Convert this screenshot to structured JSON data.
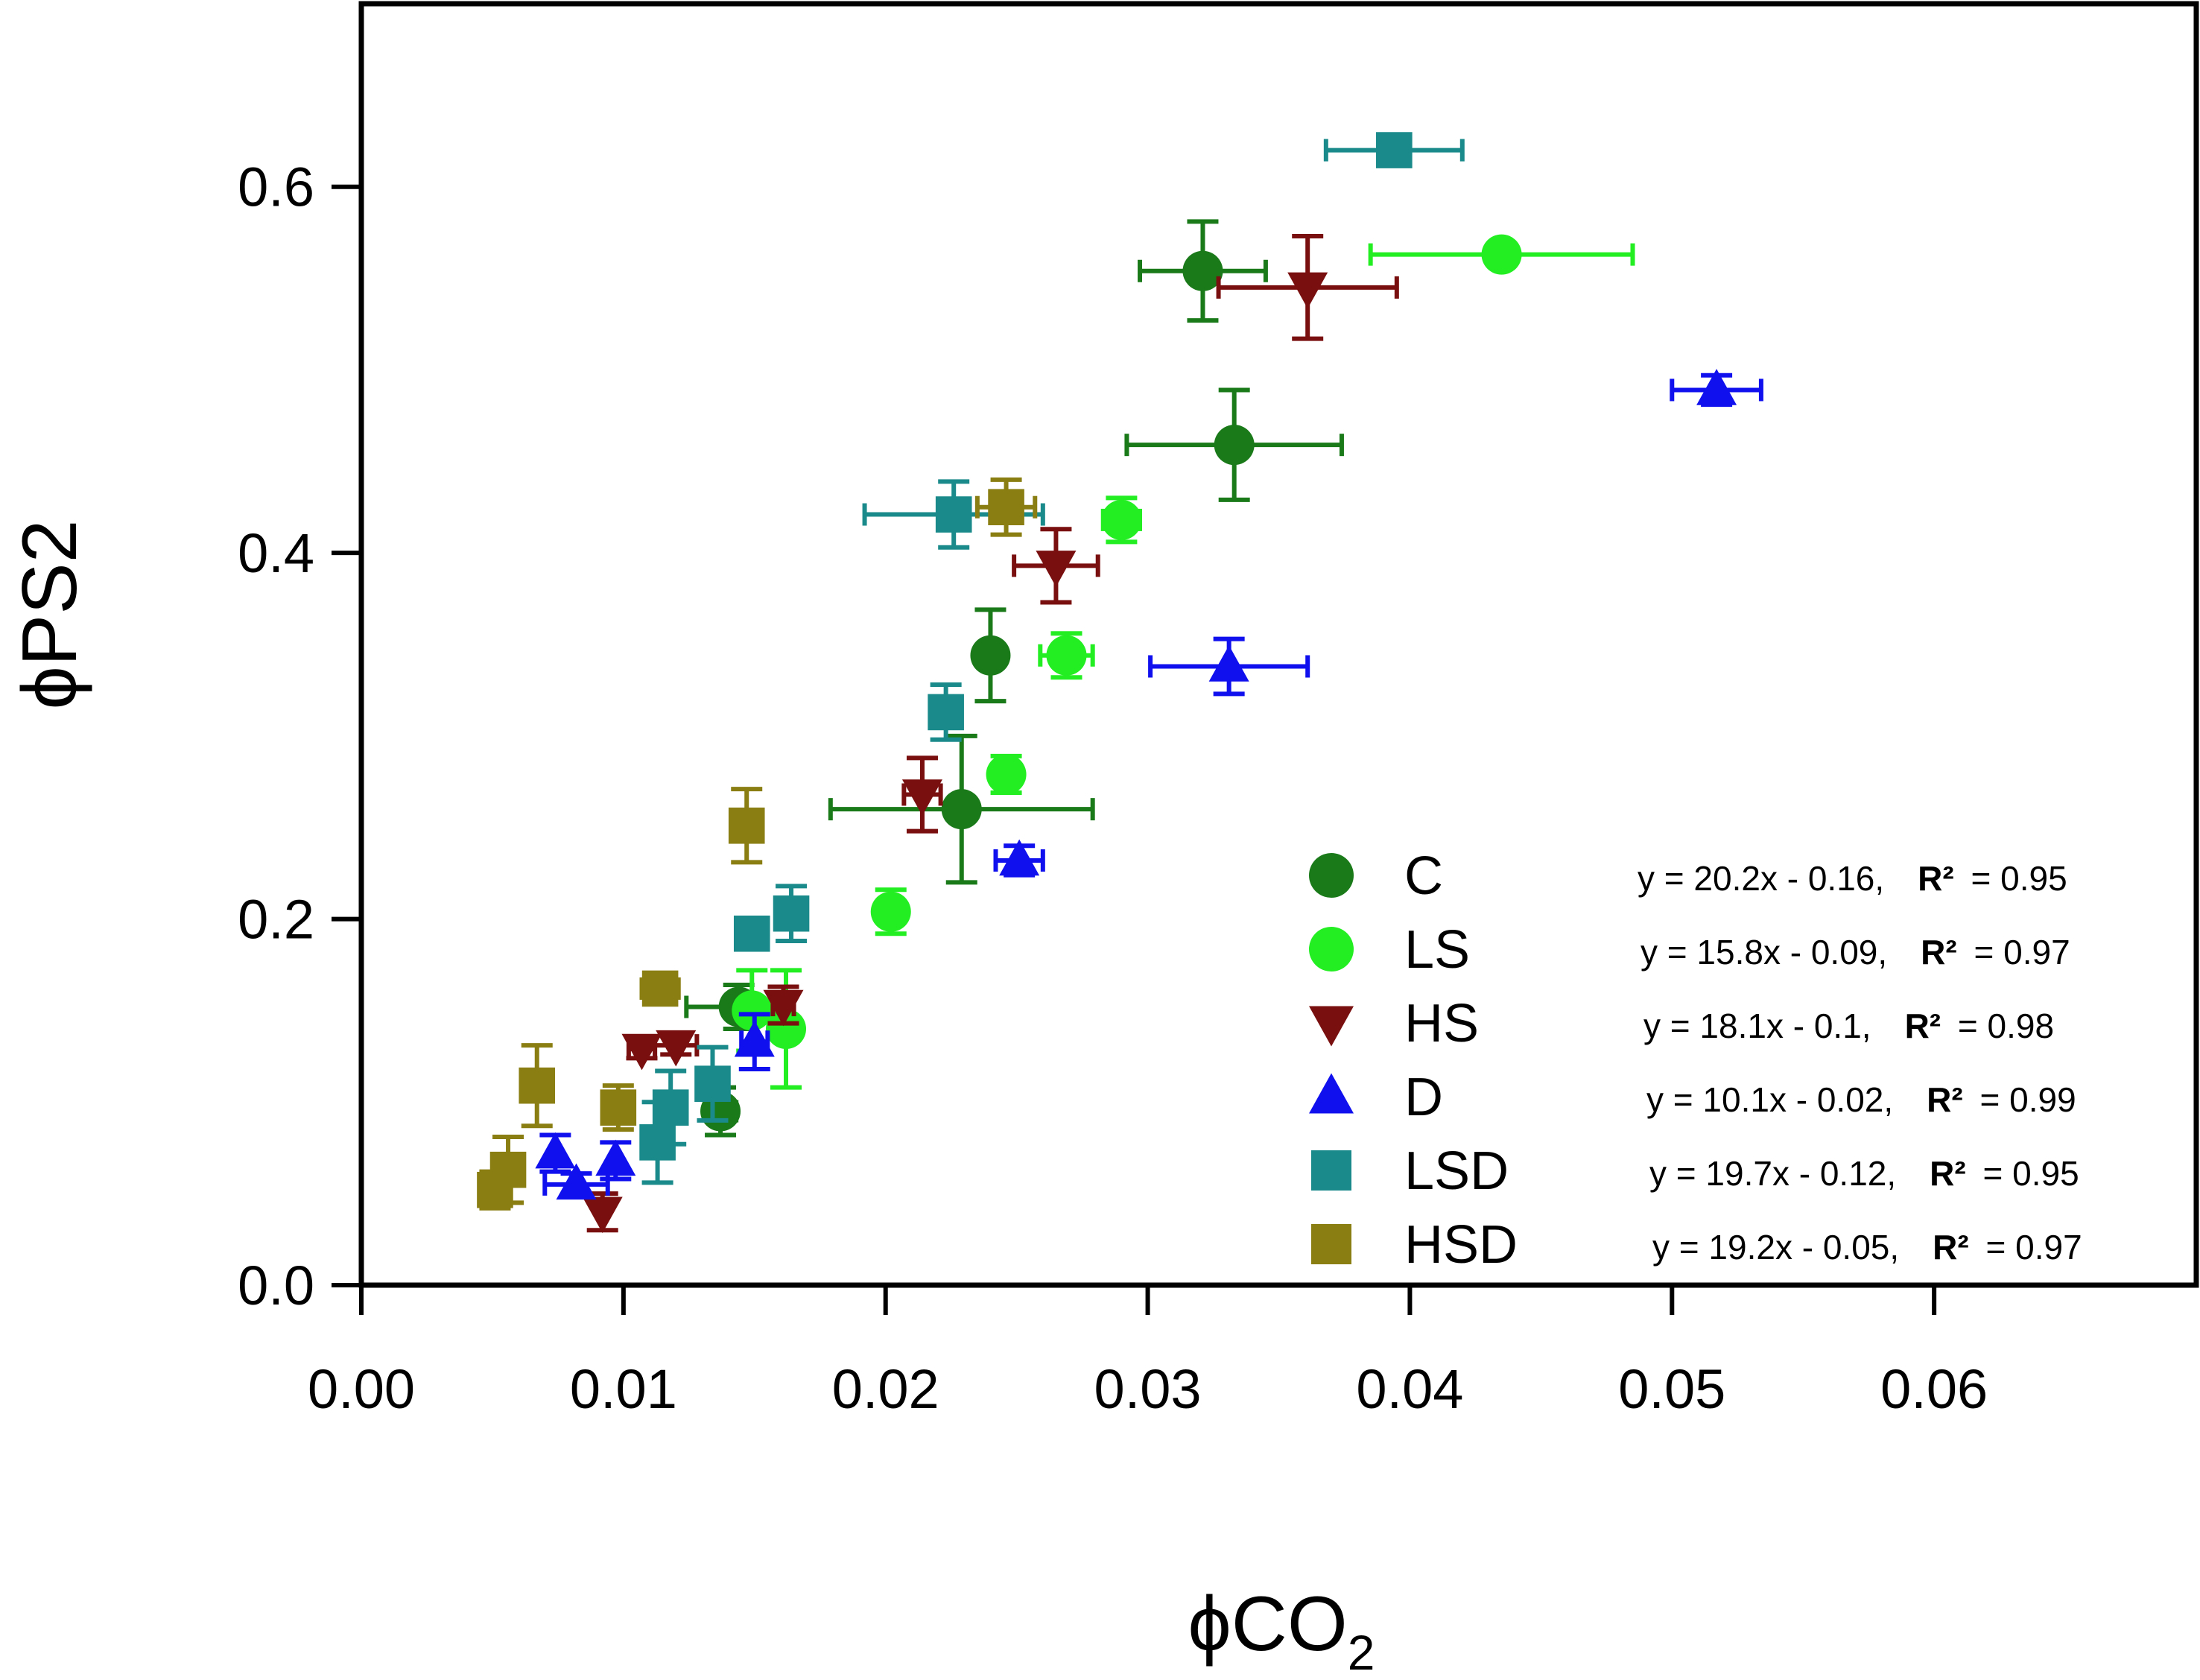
{
  "chart_data": {
    "type": "scatter",
    "title": "",
    "xlabel": "ϕCO",
    "xlabel_subscript": "2",
    "ylabel": "ϕPS2",
    "xlim": [
      0,
      0.07
    ],
    "ylim": [
      0,
      0.7
    ],
    "xticks": [
      0.0,
      0.01,
      0.02,
      0.03,
      0.04,
      0.05,
      0.06
    ],
    "xtick_labels": [
      "0.00",
      "0.01",
      "0.02",
      "0.03",
      "0.04",
      "0.05",
      "0.06"
    ],
    "yticks": [
      0.0,
      0.2,
      0.4,
      0.6
    ],
    "ytick_labels": [
      "0.0",
      "0.2",
      "0.4",
      "0.6"
    ],
    "grid": false,
    "legend_position": "bottom-right",
    "series": [
      {
        "name": "C",
        "marker": "circle",
        "color": "#1a7a1a",
        "equation": "y = 20.2x - 0.16,",
        "r2_label": "R²",
        "r2_value": "= 0.95",
        "points": [
          {
            "x": 0.0321,
            "y": 0.554,
            "xerr": 0.0024,
            "yerr": 0.027
          },
          {
            "x": 0.0333,
            "y": 0.459,
            "xerr": 0.0041,
            "yerr": 0.03
          },
          {
            "x": 0.024,
            "y": 0.344,
            "xerr": 0.0,
            "yerr": 0.025
          },
          {
            "x": 0.0229,
            "y": 0.26,
            "xerr": 0.005,
            "yerr": 0.04
          },
          {
            "x": 0.0144,
            "y": 0.152,
            "xerr": 0.002,
            "yerr": 0.012
          },
          {
            "x": 0.0137,
            "y": 0.095,
            "xerr": 0.0006,
            "yerr": 0.013
          }
        ]
      },
      {
        "name": "LS",
        "marker": "circle",
        "color": "#22ee22",
        "equation": "y = 15.8x - 0.09,",
        "r2_label": "R²",
        "r2_value": "= 0.97",
        "points": [
          {
            "x": 0.0435,
            "y": 0.563,
            "xerr": 0.005,
            "yerr": 0.0
          },
          {
            "x": 0.029,
            "y": 0.418,
            "xerr": 0.0007,
            "yerr": 0.012
          },
          {
            "x": 0.0269,
            "y": 0.344,
            "xerr": 0.001,
            "yerr": 0.012
          },
          {
            "x": 0.0246,
            "y": 0.279,
            "xerr": 0.0,
            "yerr": 0.01
          },
          {
            "x": 0.0202,
            "y": 0.204,
            "xerr": 0.0005,
            "yerr": 0.012
          },
          {
            "x": 0.0162,
            "y": 0.14,
            "xerr": 0.0004,
            "yerr": 0.032
          },
          {
            "x": 0.0149,
            "y": 0.15,
            "xerr": 0.0,
            "yerr": 0.022
          }
        ]
      },
      {
        "name": "HS",
        "marker": "triangle-down",
        "color": "#7a0f0f",
        "equation": "y = 18.1x - 0.1,",
        "r2_label": "R²",
        "r2_value": "= 0.98",
        "points": [
          {
            "x": 0.0361,
            "y": 0.545,
            "xerr": 0.0034,
            "yerr": 0.028
          },
          {
            "x": 0.0265,
            "y": 0.393,
            "xerr": 0.0016,
            "yerr": 0.02
          },
          {
            "x": 0.0214,
            "y": 0.268,
            "xerr": 0.0007,
            "yerr": 0.02
          },
          {
            "x": 0.0161,
            "y": 0.153,
            "xerr": 0.0004,
            "yerr": 0.01
          },
          {
            "x": 0.012,
            "y": 0.131,
            "xerr": 0.0008,
            "yerr": 0.005
          },
          {
            "x": 0.0107,
            "y": 0.129,
            "xerr": 0.0005,
            "yerr": 0.005
          },
          {
            "x": 0.0092,
            "y": 0.04,
            "xerr": 0.0,
            "yerr": 0.01
          }
        ]
      },
      {
        "name": "D",
        "marker": "triangle-up",
        "color": "#1010ee",
        "equation": "y = 10.1x - 0.02,",
        "r2_label": "R²",
        "r2_value": "= 0.99",
        "points": [
          {
            "x": 0.0517,
            "y": 0.489,
            "xerr": 0.0017,
            "yerr": 0.008
          },
          {
            "x": 0.0331,
            "y": 0.338,
            "xerr": 0.003,
            "yerr": 0.015
          },
          {
            "x": 0.0251,
            "y": 0.232,
            "xerr": 0.0009,
            "yerr": 0.008
          },
          {
            "x": 0.015,
            "y": 0.133,
            "xerr": 0.0005,
            "yerr": 0.015
          },
          {
            "x": 0.0097,
            "y": 0.068,
            "xerr": 0.0,
            "yerr": 0.01
          },
          {
            "x": 0.0082,
            "y": 0.055,
            "xerr": 0.0012,
            "yerr": 0.006
          },
          {
            "x": 0.0074,
            "y": 0.072,
            "xerr": 0.0,
            "yerr": 0.01
          }
        ]
      },
      {
        "name": "LSD",
        "marker": "square",
        "color": "#1a8a8a",
        "equation": "y = 19.7x - 0.12,",
        "r2_label": "R²",
        "r2_value": "= 0.95",
        "points": [
          {
            "x": 0.0394,
            "y": 0.62,
            "xerr": 0.0026,
            "yerr": 0.0
          },
          {
            "x": 0.0226,
            "y": 0.421,
            "xerr": 0.0034,
            "yerr": 0.018
          },
          {
            "x": 0.0223,
            "y": 0.313,
            "xerr": 0.0004,
            "yerr": 0.015
          },
          {
            "x": 0.0164,
            "y": 0.203,
            "xerr": 0.0005,
            "yerr": 0.015
          },
          {
            "x": 0.0149,
            "y": 0.192,
            "xerr": 0.0005,
            "yerr": 0.005
          },
          {
            "x": 0.0134,
            "y": 0.11,
            "xerr": 0.0,
            "yerr": 0.02
          },
          {
            "x": 0.0118,
            "y": 0.097,
            "xerr": 0.0,
            "yerr": 0.02
          },
          {
            "x": 0.0113,
            "y": 0.078,
            "xerr": 0.0,
            "yerr": 0.022
          }
        ]
      },
      {
        "name": "HSD",
        "marker": "square",
        "color": "#8a7e12",
        "equation": "y = 19.2x - 0.05,",
        "r2_label": "R²",
        "r2_value": "= 0.97",
        "points": [
          {
            "x": 0.0246,
            "y": 0.425,
            "xerr": 0.0011,
            "yerr": 0.015
          },
          {
            "x": 0.0147,
            "y": 0.251,
            "xerr": 0.0,
            "yerr": 0.02
          },
          {
            "x": 0.0114,
            "y": 0.162,
            "xerr": 0.0007,
            "yerr": 0.008
          },
          {
            "x": 0.0098,
            "y": 0.097,
            "xerr": 0.0005,
            "yerr": 0.012
          },
          {
            "x": 0.0067,
            "y": 0.109,
            "xerr": 0.0,
            "yerr": 0.022
          },
          {
            "x": 0.0056,
            "y": 0.063,
            "xerr": 0.0,
            "yerr": 0.018
          },
          {
            "x": 0.0051,
            "y": 0.052,
            "xerr": 0.0004,
            "yerr": 0.01
          }
        ]
      }
    ]
  }
}
